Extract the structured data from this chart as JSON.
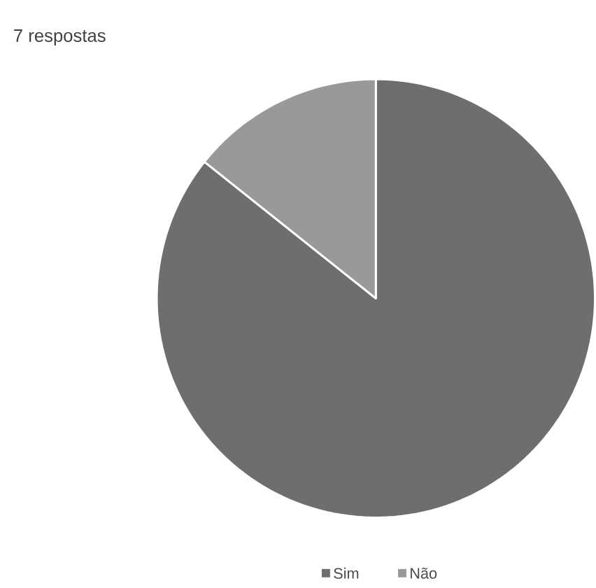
{
  "chart_data": {
    "type": "pie",
    "title": "7 respostas",
    "categories": [
      "Sim",
      "Não"
    ],
    "values": [
      85.7,
      14.3
    ],
    "colors": [
      "#6e6e6e",
      "#999999"
    ],
    "legend": "bottom"
  }
}
